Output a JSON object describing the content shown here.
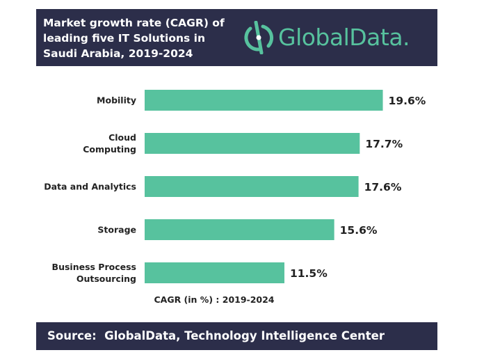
{
  "header": {
    "title": "Market growth rate (CAGR) of\nleading five IT Solutions in\nSaudi Arabia, 2019-2024",
    "brand": "GlobalData."
  },
  "colors": {
    "bar": "#57c29e",
    "header_bg": "#2c2e4a",
    "brand": "#57c29e"
  },
  "chart_data": {
    "type": "bar",
    "orientation": "horizontal",
    "categories": [
      "Mobility",
      "Cloud\nComputing",
      "Data and Analytics",
      "Storage",
      "Business Process\nOutsourcing"
    ],
    "values": [
      19.6,
      17.7,
      17.6,
      15.6,
      11.5
    ],
    "data_labels": [
      "19.6%",
      "17.7%",
      "17.6%",
      "15.6%",
      "11.5%"
    ],
    "xlabel": "CAGR (in %) : 2019-2024",
    "xlim": [
      0,
      21
    ],
    "grid": false
  },
  "footer": {
    "source": "Source:  GlobalData, Technology Intelligence Center"
  }
}
